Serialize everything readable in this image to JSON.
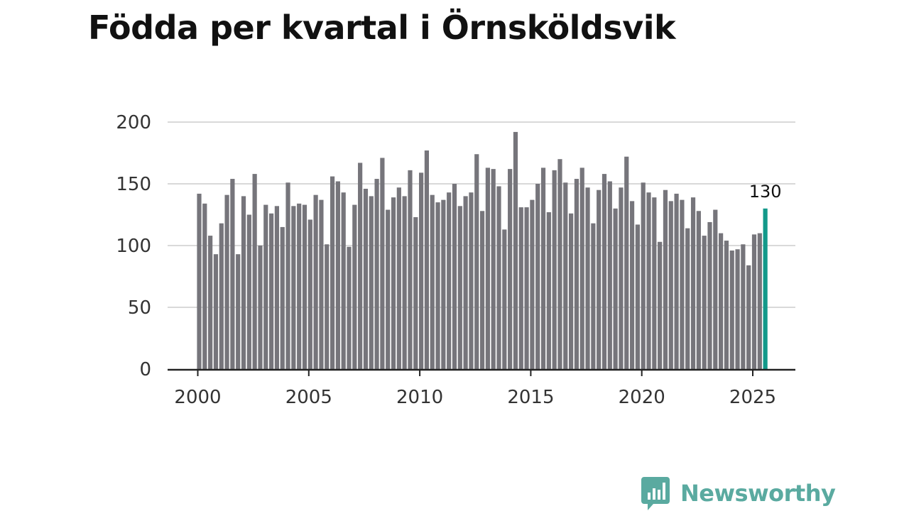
{
  "header": {
    "title": "Födda per kvartal i Örnsköldsvik"
  },
  "brand": {
    "name": "Newsworthy"
  },
  "colors": {
    "bar": "#76757b",
    "highlight": "#12998a",
    "grid": "#d9d9d9",
    "axis": "#222222",
    "brand": "#5aaaa0"
  },
  "chart_data": {
    "type": "bar",
    "title": "Födda per kvartal i Örnsköldsvik",
    "xlabel": "",
    "ylabel": "",
    "ylim": [
      0,
      200
    ],
    "y_ticks": [
      0,
      50,
      100,
      150,
      200
    ],
    "x_ticks": [
      "2000",
      "2005",
      "2010",
      "2015",
      "2020",
      "2025"
    ],
    "grid": true,
    "start_year": 2000,
    "values": [
      142,
      134,
      108,
      93,
      118,
      141,
      154,
      93,
      140,
      125,
      158,
      100,
      133,
      126,
      132,
      115,
      151,
      132,
      134,
      133,
      121,
      141,
      137,
      101,
      156,
      152,
      143,
      99,
      133,
      167,
      146,
      140,
      154,
      171,
      129,
      139,
      147,
      140,
      161,
      123,
      159,
      177,
      141,
      135,
      137,
      143,
      150,
      132,
      140,
      143,
      174,
      128,
      163,
      162,
      148,
      113,
      162,
      192,
      131,
      131,
      137,
      150,
      163,
      127,
      161,
      170,
      151,
      126,
      154,
      163,
      147,
      118,
      145,
      158,
      152,
      130,
      147,
      172,
      136,
      117,
      151,
      143,
      139,
      103,
      145,
      136,
      142,
      137,
      114,
      139,
      128,
      108,
      119,
      129,
      110,
      104,
      96,
      97,
      101,
      84,
      109,
      110,
      130
    ],
    "highlight_label": "130"
  }
}
